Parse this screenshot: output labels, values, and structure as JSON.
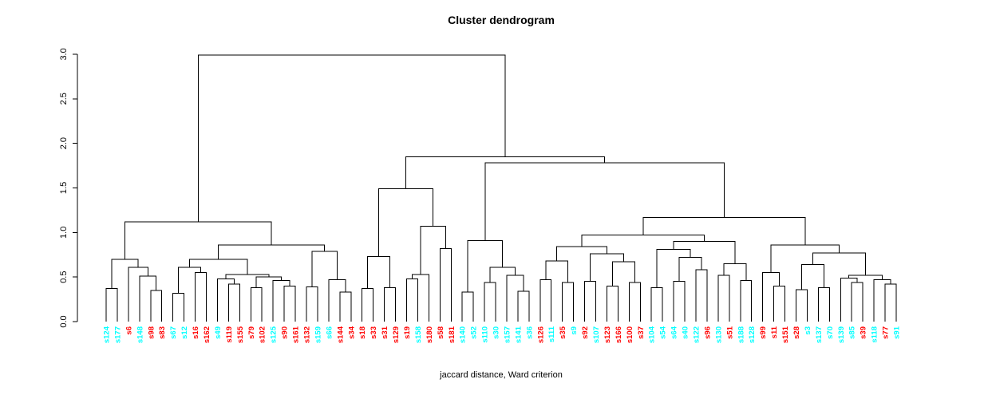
{
  "colors": {
    "line": "#000000",
    "text": "#000000",
    "background": "#FFFFFF",
    "cyan": "#00FFFF",
    "red": "#FF0000"
  },
  "chart_data": {
    "type": "dendrogram",
    "title": "Cluster dendrogram",
    "xlabel": "jaccard distance, Ward criterion",
    "ylabel": "",
    "ylim": [
      0,
      3
    ],
    "yticks": [
      "0.0",
      "0.5",
      "1.0",
      "1.5",
      "2.0",
      "2.5",
      "3.0"
    ],
    "ytick_values": [
      0,
      0.5,
      1,
      1.5,
      2,
      2.5,
      3
    ],
    "legend": "none",
    "grid": false,
    "leaves": [
      {
        "label": "s124",
        "color": "cyan"
      },
      {
        "label": "s177",
        "color": "cyan"
      },
      {
        "label": "s6",
        "color": "red"
      },
      {
        "label": "s148",
        "color": "cyan"
      },
      {
        "label": "s98",
        "color": "red"
      },
      {
        "label": "s83",
        "color": "red"
      },
      {
        "label": "s67",
        "color": "cyan"
      },
      {
        "label": "s12",
        "color": "cyan"
      },
      {
        "label": "s16",
        "color": "red"
      },
      {
        "label": "s162",
        "color": "red"
      },
      {
        "label": "s49",
        "color": "cyan"
      },
      {
        "label": "s119",
        "color": "red"
      },
      {
        "label": "s155",
        "color": "red"
      },
      {
        "label": "s79",
        "color": "red"
      },
      {
        "label": "s102",
        "color": "red"
      },
      {
        "label": "s125",
        "color": "cyan"
      },
      {
        "label": "s90",
        "color": "red"
      },
      {
        "label": "s161",
        "color": "red"
      },
      {
        "label": "s132",
        "color": "red"
      },
      {
        "label": "s159",
        "color": "cyan"
      },
      {
        "label": "s66",
        "color": "cyan"
      },
      {
        "label": "s144",
        "color": "red"
      },
      {
        "label": "s34",
        "color": "red"
      },
      {
        "label": "s18",
        "color": "red"
      },
      {
        "label": "s33",
        "color": "red"
      },
      {
        "label": "s31",
        "color": "red"
      },
      {
        "label": "s129",
        "color": "red"
      },
      {
        "label": "s19",
        "color": "red"
      },
      {
        "label": "s158",
        "color": "cyan"
      },
      {
        "label": "s180",
        "color": "red"
      },
      {
        "label": "s58",
        "color": "red"
      },
      {
        "label": "s181",
        "color": "red"
      },
      {
        "label": "s140",
        "color": "cyan"
      },
      {
        "label": "s52",
        "color": "cyan"
      },
      {
        "label": "s110",
        "color": "cyan"
      },
      {
        "label": "s30",
        "color": "cyan"
      },
      {
        "label": "s157",
        "color": "cyan"
      },
      {
        "label": "s141",
        "color": "cyan"
      },
      {
        "label": "s36",
        "color": "cyan"
      },
      {
        "label": "s126",
        "color": "red"
      },
      {
        "label": "s111",
        "color": "cyan"
      },
      {
        "label": "s35",
        "color": "red"
      },
      {
        "label": "s9",
        "color": "cyan"
      },
      {
        "label": "s92",
        "color": "red"
      },
      {
        "label": "s107",
        "color": "cyan"
      },
      {
        "label": "s123",
        "color": "red"
      },
      {
        "label": "s166",
        "color": "red"
      },
      {
        "label": "s100",
        "color": "red"
      },
      {
        "label": "s37",
        "color": "red"
      },
      {
        "label": "s104",
        "color": "cyan"
      },
      {
        "label": "s54",
        "color": "cyan"
      },
      {
        "label": "s64",
        "color": "cyan"
      },
      {
        "label": "s40",
        "color": "cyan"
      },
      {
        "label": "s122",
        "color": "cyan"
      },
      {
        "label": "s96",
        "color": "red"
      },
      {
        "label": "s130",
        "color": "cyan"
      },
      {
        "label": "s51",
        "color": "red"
      },
      {
        "label": "s188",
        "color": "cyan"
      },
      {
        "label": "s128",
        "color": "cyan"
      },
      {
        "label": "s99",
        "color": "red"
      },
      {
        "label": "s11",
        "color": "red"
      },
      {
        "label": "s151",
        "color": "red"
      },
      {
        "label": "s28",
        "color": "red"
      },
      {
        "label": "s3",
        "color": "cyan"
      },
      {
        "label": "s137",
        "color": "cyan"
      },
      {
        "label": "s70",
        "color": "cyan"
      },
      {
        "label": "s139",
        "color": "cyan"
      },
      {
        "label": "s85",
        "color": "cyan"
      },
      {
        "label": "s39",
        "color": "red"
      },
      {
        "label": "s118",
        "color": "cyan"
      },
      {
        "label": "s77",
        "color": "red"
      },
      {
        "label": "s91",
        "color": "cyan"
      }
    ],
    "tree": {
      "h": 2.99,
      "c": [
        {
          "h": 1.12,
          "c": [
            {
              "h": 0.7,
              "c": [
                {
                  "h": 0.37,
                  "c": [
                    "s124",
                    "s177"
                  ]
                },
                {
                  "h": 0.61,
                  "c": [
                    "s6",
                    {
                      "h": 0.51,
                      "c": [
                        "s148",
                        {
                          "h": 0.35,
                          "c": [
                            "s98",
                            "s83"
                          ]
                        }
                      ]
                    }
                  ]
                }
              ]
            },
            {
              "h": 0.86,
              "c": [
                {
                  "h": 0.7,
                  "c": [
                    {
                      "h": 0.61,
                      "c": [
                        {
                          "h": 0.32,
                          "c": [
                            "s67",
                            "s12"
                          ]
                        },
                        {
                          "h": 0.55,
                          "c": [
                            "s16",
                            "s162"
                          ]
                        }
                      ]
                    },
                    {
                      "h": 0.53,
                      "c": [
                        {
                          "h": 0.48,
                          "c": [
                            "s49",
                            {
                              "h": 0.42,
                              "c": [
                                "s119",
                                "s155"
                              ]
                            }
                          ]
                        },
                        {
                          "h": 0.5,
                          "c": [
                            {
                              "h": 0.38,
                              "c": [
                                "s79",
                                "s102"
                              ]
                            },
                            {
                              "h": 0.46,
                              "c": [
                                "s125",
                                {
                                  "h": 0.4,
                                  "c": [
                                    "s90",
                                    "s161"
                                  ]
                                }
                              ]
                            }
                          ]
                        }
                      ]
                    }
                  ]
                },
                {
                  "h": 0.79,
                  "c": [
                    {
                      "h": 0.39,
                      "c": [
                        "s132",
                        "s159"
                      ]
                    },
                    {
                      "h": 0.47,
                      "c": [
                        "s66",
                        {
                          "h": 0.33,
                          "c": [
                            "s144",
                            "s34"
                          ]
                        }
                      ]
                    }
                  ]
                }
              ]
            }
          ]
        },
        {
          "h": 1.85,
          "c": [
            {
              "h": 1.49,
              "c": [
                {
                  "h": 0.73,
                  "c": [
                    {
                      "h": 0.37,
                      "c": [
                        "s18",
                        "s33"
                      ]
                    },
                    {
                      "h": 0.38,
                      "c": [
                        "s31",
                        "s129"
                      ]
                    }
                  ]
                },
                {
                  "h": 1.07,
                  "c": [
                    {
                      "h": 0.53,
                      "c": [
                        {
                          "h": 0.48,
                          "c": [
                            "s19",
                            "s158"
                          ]
                        },
                        "s180"
                      ]
                    },
                    {
                      "h": 0.82,
                      "c": [
                        "s58",
                        "s181"
                      ]
                    }
                  ]
                }
              ]
            },
            {
              "h": 1.78,
              "c": [
                {
                  "h": 0.91,
                  "c": [
                    {
                      "h": 0.33,
                      "c": [
                        "s140",
                        "s52"
                      ]
                    },
                    {
                      "h": 0.61,
                      "c": [
                        {
                          "h": 0.44,
                          "c": [
                            "s110",
                            "s30"
                          ]
                        },
                        {
                          "h": 0.52,
                          "c": [
                            "s157",
                            {
                              "h": 0.34,
                              "c": [
                                "s141",
                                "s36"
                              ]
                            }
                          ]
                        }
                      ]
                    }
                  ]
                },
                {
                  "h": 1.17,
                  "c": [
                    {
                      "h": 0.97,
                      "c": [
                        {
                          "h": 0.84,
                          "c": [
                            {
                              "h": 0.68,
                              "c": [
                                {
                                  "h": 0.47,
                                  "c": [
                                    "s126",
                                    "s111"
                                  ]
                                },
                                {
                                  "h": 0.44,
                                  "c": [
                                    "s35",
                                    "s9"
                                  ]
                                }
                              ]
                            },
                            {
                              "h": 0.76,
                              "c": [
                                {
                                  "h": 0.45,
                                  "c": [
                                    "s92",
                                    "s107"
                                  ]
                                },
                                {
                                  "h": 0.67,
                                  "c": [
                                    {
                                      "h": 0.4,
                                      "c": [
                                        "s123",
                                        "s166"
                                      ]
                                    },
                                    {
                                      "h": 0.44,
                                      "c": [
                                        "s100",
                                        "s37"
                                      ]
                                    }
                                  ]
                                }
                              ]
                            }
                          ]
                        },
                        {
                          "h": 0.9,
                          "c": [
                            {
                              "h": 0.81,
                              "c": [
                                {
                                  "h": 0.38,
                                  "c": [
                                    "s104",
                                    "s54"
                                  ]
                                },
                                {
                                  "h": 0.72,
                                  "c": [
                                    {
                                      "h": 0.45,
                                      "c": [
                                        "s64",
                                        "s40"
                                      ]
                                    },
                                    {
                                      "h": 0.58,
                                      "c": [
                                        "s122",
                                        "s96"
                                      ]
                                    }
                                  ]
                                }
                              ]
                            },
                            {
                              "h": 0.65,
                              "c": [
                                {
                                  "h": 0.52,
                                  "c": [
                                    "s130",
                                    "s51"
                                  ]
                                },
                                {
                                  "h": 0.46,
                                  "c": [
                                    "s188",
                                    "s128"
                                  ]
                                }
                              ]
                            }
                          ]
                        }
                      ]
                    },
                    {
                      "h": 0.86,
                      "c": [
                        {
                          "h": 0.55,
                          "c": [
                            "s99",
                            {
                              "h": 0.4,
                              "c": [
                                "s11",
                                "s151"
                              ]
                            }
                          ]
                        },
                        {
                          "h": 0.77,
                          "c": [
                            {
                              "h": 0.64,
                              "c": [
                                {
                                  "h": 0.36,
                                  "c": [
                                    "s28",
                                    "s3"
                                  ]
                                },
                                {
                                  "h": 0.38,
                                  "c": [
                                    "s137",
                                    "s70"
                                  ]
                                }
                              ]
                            },
                            {
                              "h": 0.52,
                              "c": [
                                {
                                  "h": 0.49,
                                  "c": [
                                    "s139",
                                    {
                                      "h": 0.44,
                                      "c": [
                                        "s85",
                                        "s39"
                                      ]
                                    }
                                  ]
                                },
                                {
                                  "h": 0.47,
                                  "c": [
                                    "s118",
                                    {
                                      "h": 0.42,
                                      "c": [
                                        "s77",
                                        "s91"
                                      ]
                                    }
                                  ]
                                }
                              ]
                            }
                          ]
                        }
                      ]
                    }
                  ]
                }
              ]
            }
          ]
        }
      ]
    }
  }
}
